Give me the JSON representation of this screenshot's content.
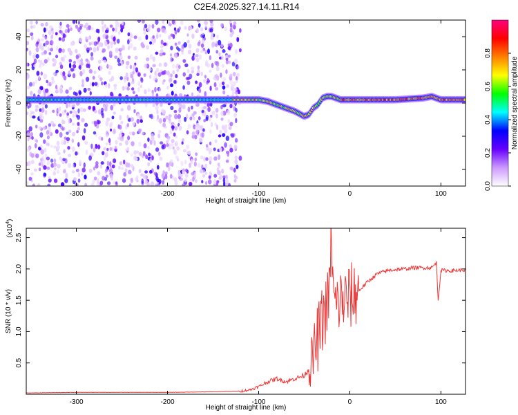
{
  "chart_data": [
    {
      "type": "heatmap",
      "title": "C2E4.2025.327.14.11.R14",
      "xlabel": "Height of straight line (km)",
      "ylabel": "Frequency (Hz)",
      "xlim": [
        -355,
        127
      ],
      "ylim": [
        -50,
        50
      ],
      "xticks": [
        -300,
        -200,
        -100,
        0,
        100
      ],
      "xtick_labels": [
        "-300",
        "-200",
        "-100",
        "0",
        "100"
      ],
      "yticks": [
        -40,
        -20,
        0,
        20,
        40
      ],
      "ytick_labels": [
        "-40",
        "-20",
        "0",
        "20",
        "40"
      ],
      "colorbar": {
        "label": "Normalized spectral amplitude",
        "range": [
          0,
          1
        ],
        "ticks": [
          0.0,
          0.2,
          0.4,
          0.6,
          0.8
        ],
        "tick_labels": [
          "0.0",
          "0.2",
          "0.4",
          "0.6",
          "0.8"
        ],
        "colors": [
          "#ffffff",
          "#cc99ff",
          "#6600ff",
          "#0000ff",
          "#00ffff",
          "#00ff00",
          "#ffff00",
          "#ff8000",
          "#ff0000",
          "#ff0080"
        ]
      },
      "ridge": {
        "x": [
          -355,
          -300,
          -200,
          -140,
          -120,
          -100,
          -90,
          -80,
          -70,
          -60,
          -50,
          -45,
          -40,
          -35,
          -30,
          -25,
          -20,
          -15,
          -10,
          0,
          20,
          50,
          80,
          90,
          100,
          127
        ],
        "freq": [
          2,
          2,
          2,
          2,
          2,
          2,
          1,
          -1,
          -3,
          -5,
          -8,
          -7,
          -3,
          -1,
          3,
          4,
          4,
          3,
          2,
          2,
          2,
          2,
          3,
          4,
          2,
          2
        ]
      },
      "noise_extent_x": [
        -355,
        -130
      ]
    },
    {
      "type": "line",
      "exponent_label": "(x10",
      "exponent_sup": "4",
      "exponent_close": ")",
      "xlabel": "Height of straight line (km)",
      "ylabel": "SNR (10 * v/v)",
      "xlim": [
        -355,
        127
      ],
      "ylim": [
        0,
        2.65
      ],
      "xticks": [
        -300,
        -200,
        -100,
        0,
        100
      ],
      "xtick_labels": [
        "-300",
        "-200",
        "-100",
        "0",
        "100"
      ],
      "yticks": [
        0.5,
        1.0,
        1.5,
        2.0,
        2.5
      ],
      "ytick_labels": [
        "0.5",
        "1.0",
        "1.5",
        "2.0",
        "2.5"
      ],
      "series": [
        {
          "name": "SNR",
          "color": "#ee3333",
          "x": [
            -355,
            -300,
            -250,
            -200,
            -150,
            -120,
            -110,
            -100,
            -90,
            -80,
            -70,
            -60,
            -50,
            -45,
            -40,
            -35,
            -30,
            -25,
            -22,
            -20,
            -18,
            -15,
            -10,
            -5,
            0,
            5,
            10,
            20,
            30,
            40,
            50,
            60,
            70,
            80,
            90,
            95,
            97,
            100,
            110,
            120,
            127
          ],
          "y": [
            0.02,
            0.03,
            0.03,
            0.03,
            0.04,
            0.05,
            0.07,
            0.12,
            0.2,
            0.25,
            0.2,
            0.25,
            0.3,
            0.4,
            0.6,
            0.9,
            1.2,
            1.4,
            1.7,
            2.65,
            1.5,
            1.4,
            1.5,
            1.5,
            1.55,
            1.6,
            1.65,
            1.8,
            1.92,
            1.97,
            1.99,
            2.0,
            2.02,
            2.02,
            2.02,
            2.1,
            1.5,
            1.98,
            1.97,
            1.98,
            1.98
          ]
        }
      ]
    }
  ]
}
